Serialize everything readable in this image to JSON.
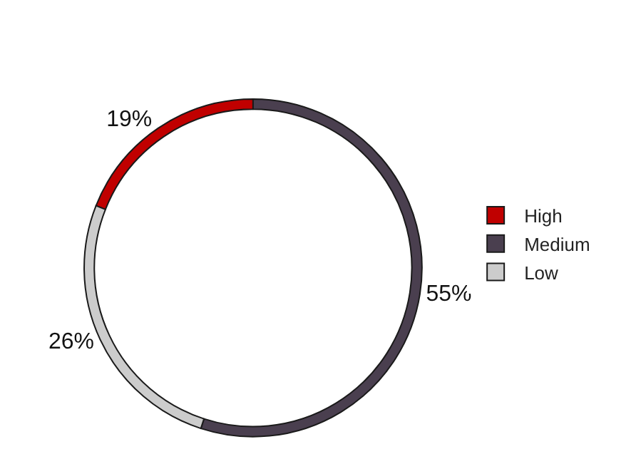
{
  "chart_data": {
    "type": "donut",
    "categories": [
      "High",
      "Medium",
      "Low"
    ],
    "values": [
      19,
      55,
      26
    ],
    "colors": [
      "#c00000",
      "#4a3f4f",
      "#cccccc"
    ],
    "value_labels": [
      "19%",
      "55%",
      "26%"
    ],
    "legend": "right"
  }
}
